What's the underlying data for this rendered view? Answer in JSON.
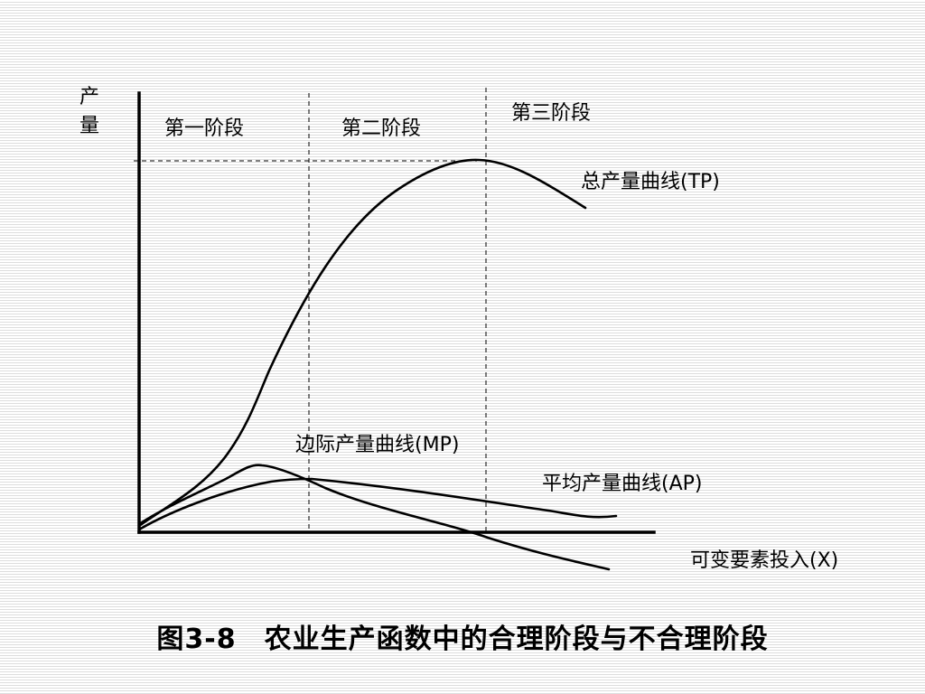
{
  "diagram": {
    "y_axis_label": "产量",
    "x_axis_label": "可变要素投入(X)",
    "stages": [
      {
        "label": "第一阶段"
      },
      {
        "label": "第二阶段"
      },
      {
        "label": "第三阶段"
      }
    ],
    "curves": {
      "tp": {
        "label": "总产量曲线(TP)"
      },
      "mp": {
        "label": "边际产量曲线(MP)"
      },
      "ap": {
        "label": "平均产量曲线(AP)"
      }
    }
  },
  "caption": "图3-8　农业生产函数中的合理阶段与不合理阶段"
}
